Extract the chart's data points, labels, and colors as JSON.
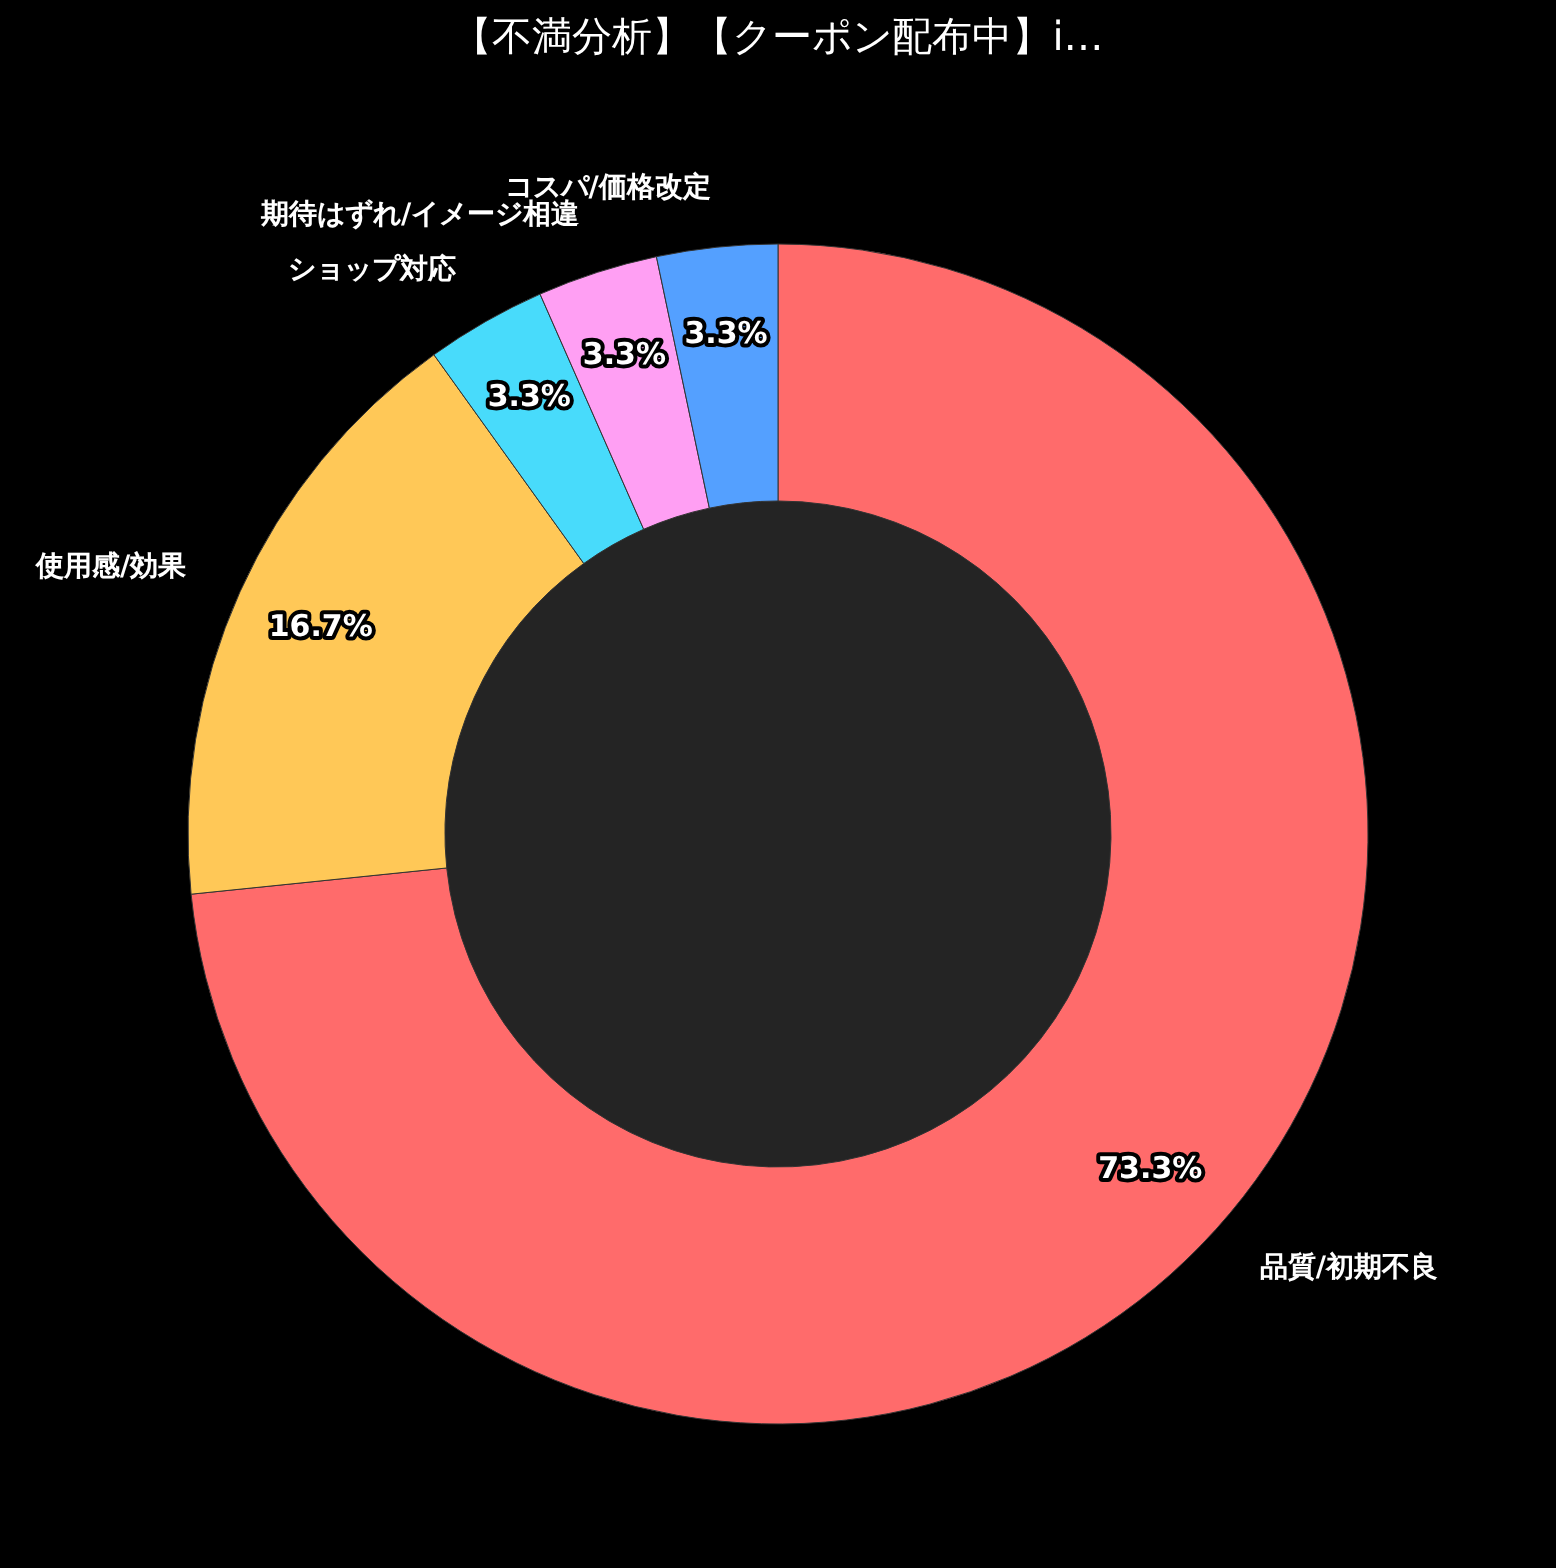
{
  "chart_data": {
    "type": "donut",
    "title": "【不満分析】【クーポン配布中】i…",
    "categories": [
      "品質/初期不良",
      "使用感/効果",
      "ショップ対応",
      "期待はずれ/イメージ相違",
      "コスパ/価格改定"
    ],
    "values": [
      73.3,
      16.7,
      3.3,
      3.3,
      3.3
    ],
    "colors": [
      "#ff6b6b",
      "#ffc857",
      "#48dbfb",
      "#ff9ff3",
      "#54a0ff"
    ],
    "value_labels": [
      "73.3%",
      "16.7%",
      "3.3%",
      "3.3%",
      "3.3%"
    ],
    "legend": false
  }
}
